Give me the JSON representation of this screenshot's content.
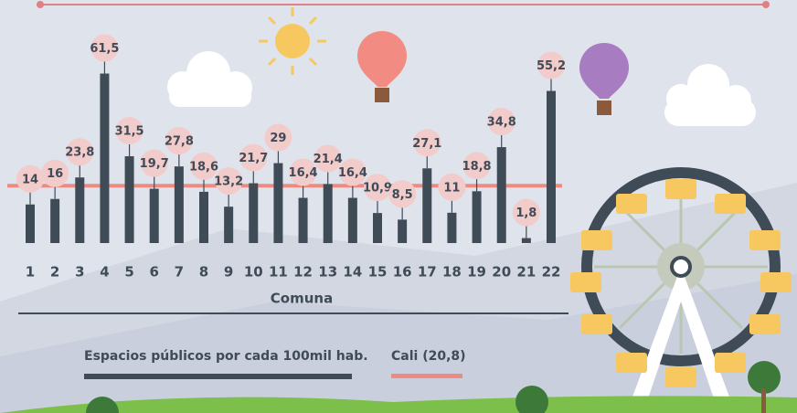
{
  "chart_data": {
    "type": "bar",
    "x_label": "Comuna",
    "categories": [
      "1",
      "2",
      "3",
      "4",
      "5",
      "6",
      "7",
      "8",
      "9",
      "10",
      "11",
      "12",
      "13",
      "14",
      "15",
      "16",
      "17",
      "18",
      "19",
      "20",
      "21",
      "22"
    ],
    "series": [
      {
        "name": "Espacios públicos por cada 100mil hab.",
        "color": "#3f4b56",
        "values": [
          14,
          16,
          23.8,
          61.5,
          31.5,
          19.7,
          27.8,
          18.6,
          13.2,
          21.7,
          29,
          16.4,
          21.4,
          16.4,
          10.9,
          8.5,
          27.1,
          11,
          18.8,
          34.8,
          1.8,
          55.2
        ],
        "value_labels": [
          "14",
          "16",
          "23,8",
          "61,5",
          "31,5",
          "19,7",
          "27,8",
          "18,6",
          "13,2",
          "21,7",
          "29",
          "16,4",
          "21,4",
          "16,4",
          "10,9",
          "8,5",
          "27,1",
          "11",
          "18,8",
          "34,8",
          "1,8",
          "55,2"
        ]
      }
    ],
    "reference_line": {
      "name": "Cali (20,8)",
      "value": 20.8,
      "color": "#ef8a80"
    },
    "ylim": [
      0,
      62
    ]
  }
}
